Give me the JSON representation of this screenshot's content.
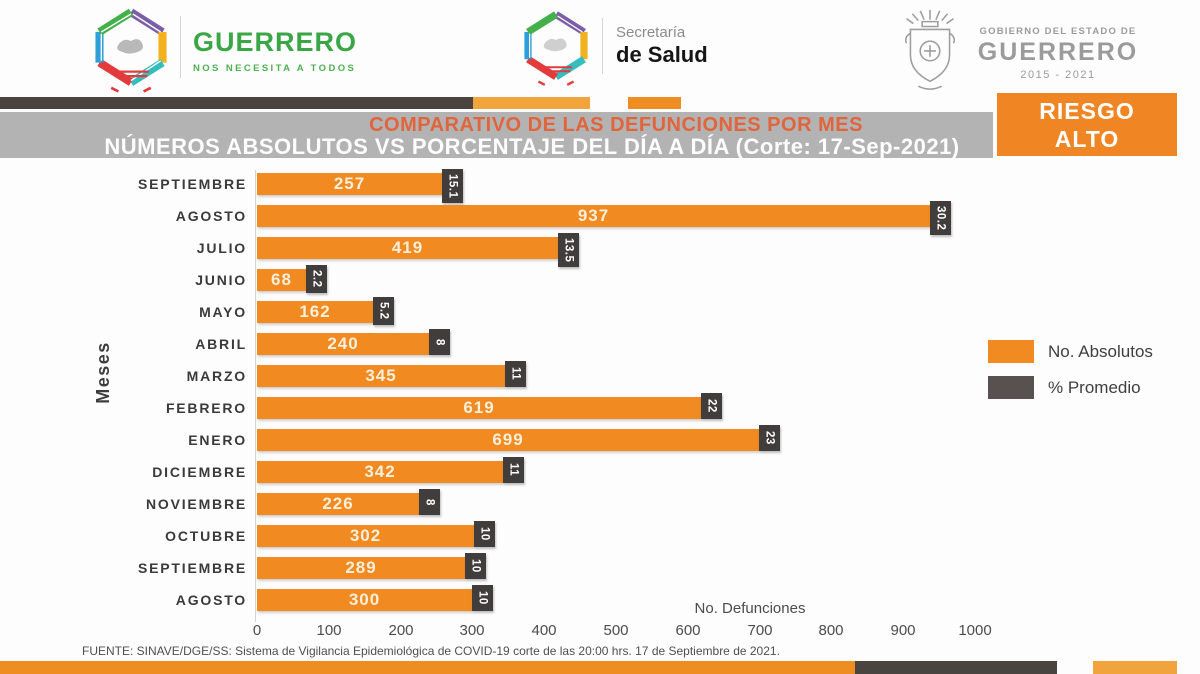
{
  "header": {
    "guerrero_logo": {
      "name": "GUERRERO",
      "tagline": "NOS NECESITA A TODOS"
    },
    "salud_logo": {
      "line1": "Secretaría",
      "line2": "de Salud"
    },
    "estado_logo": {
      "line1": "GOBIERNO DEL ESTADO DE",
      "line2": "GUERRERO",
      "line3": "2015 - 2021"
    }
  },
  "banner": {
    "title": "COMPARATIVO DE LAS DEFUNCIONES POR MES",
    "subtitle": "NÚMEROS ABSOLUTOS VS PORCENTAJE DEL DÍA A DÍA   (Corte: 17-Sep-2021)",
    "risk_line1": "RIESGO",
    "risk_line2": "ALTO"
  },
  "chart_data": {
    "type": "bar",
    "orientation": "horizontal",
    "title": "COMPARATIVO DE LAS DEFUNCIONES POR MES",
    "categories": [
      "SEPTIEMBRE",
      "AGOSTO",
      "JULIO",
      "JUNIO",
      "MAYO",
      "ABRIL",
      "MARZO",
      "FEBRERO",
      "ENERO",
      "DICIEMBRE",
      "NOVIEMBRE",
      "OCTUBRE",
      "SEPTIEMBRE",
      "AGOSTO"
    ],
    "series": [
      {
        "name": "No. Absolutos",
        "values": [
          257,
          937,
          419,
          68,
          162,
          240,
          345,
          619,
          699,
          342,
          226,
          302,
          289,
          300
        ],
        "color": "#F08A21"
      },
      {
        "name": "% Promedio",
        "values": [
          "15.1",
          "30.2",
          "13.5",
          "2.2",
          "5.2",
          "8",
          "11",
          "22",
          "23",
          "11",
          "8",
          "10",
          "10",
          "10"
        ],
        "color": "#403D3C"
      }
    ],
    "xlabel": "No. Defunciones",
    "ylabel": "Meses",
    "xlim": [
      0,
      1000
    ],
    "xticks": [
      0,
      100,
      200,
      300,
      400,
      500,
      600,
      700,
      800,
      900,
      1000
    ],
    "grid": false,
    "legend_position": "right",
    "legend": [
      {
        "label": "No. Absolutos",
        "color": "#F08A21"
      },
      {
        "label": "% Promedio",
        "color": "#575250"
      }
    ]
  },
  "footer": {
    "source": "FUENTE: SINAVE/DGE/SS: Sistema de Vigilancia Epidemiológica de COVID-19 corte de las 20:00 hrs. 17 de Septiembre de 2021."
  }
}
